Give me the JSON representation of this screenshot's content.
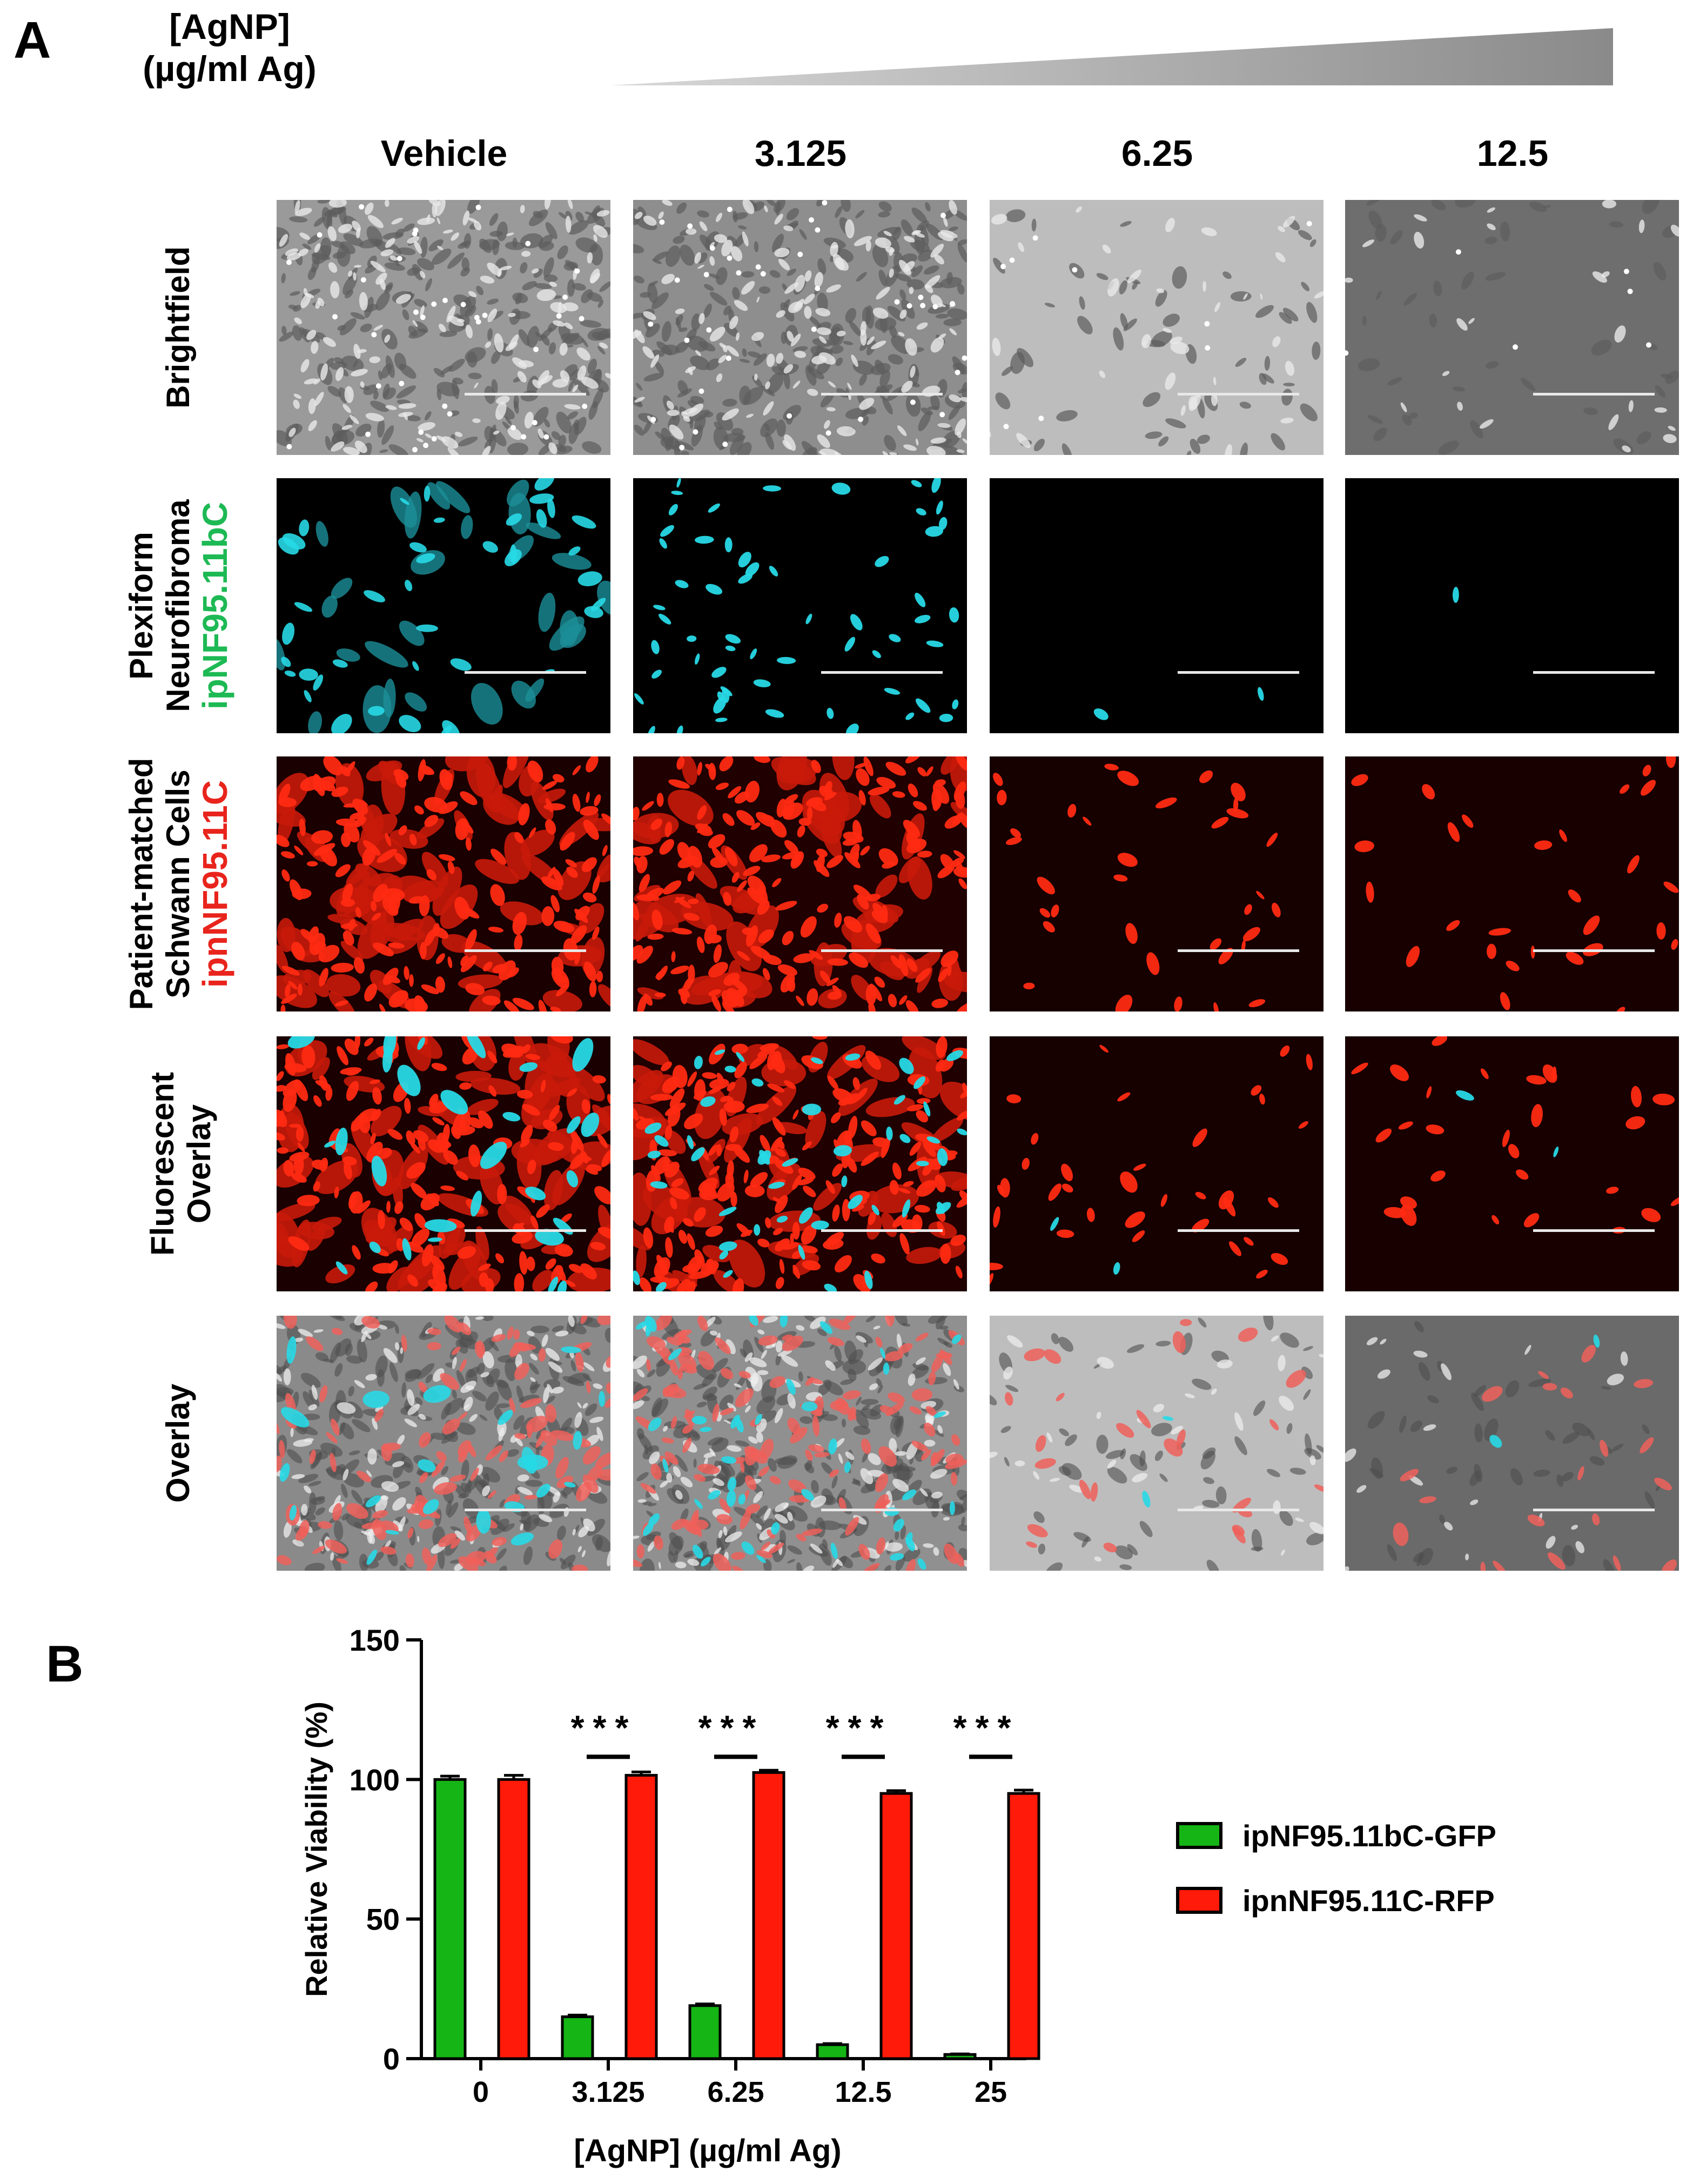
{
  "panel_a": {
    "letter": "A",
    "concentration_label_line1": "[AgNP]",
    "concentration_label_line2": "(µg/ml Ag)",
    "columns": [
      "Vehicle",
      "3.125",
      "6.25",
      "12.5"
    ],
    "rows": [
      {
        "line1": "Brightfield",
        "line2": "",
        "line3": "",
        "kind": "bf"
      },
      {
        "line1": "Plexiform",
        "line2": "Neurofibroma",
        "line3": "ipNF95.11bC",
        "kind": "gfp"
      },
      {
        "line1": "Patient-matched",
        "line2": "Schwann Cells",
        "line3": "ipnNF95.11C",
        "kind": "rfp"
      },
      {
        "line1": "Fluorescent",
        "line2": "Overlay",
        "line3": "",
        "kind": "fluo"
      },
      {
        "line1": "Overlay",
        "line2": "",
        "line3": "",
        "kind": "overlay"
      }
    ],
    "colors": {
      "gfp_label": "#1db954",
      "rfp_label": "#e8241c",
      "cyan": "#27d9e6",
      "red": "#ff2a12"
    }
  },
  "panel_b": {
    "letter": "B",
    "chart_data": {
      "type": "bar",
      "ylabel": "Relative Viability (%)",
      "xlabel": "[AgNP] (µg/ml Ag)",
      "ylim": [
        0,
        150
      ],
      "yticks": [
        "0",
        "50",
        "100",
        "150"
      ],
      "categories": [
        "0",
        "3.125",
        "6.25",
        "12.5",
        "25"
      ],
      "series": [
        {
          "name": "ipNF95.11bC-GFP",
          "color": "#15b515",
          "values": [
            100,
            15,
            19,
            5,
            1.5
          ],
          "err": [
            1.2,
            0.6,
            0.6,
            0.4,
            0.2
          ]
        },
        {
          "name": "ipnNF95.11C-RFP",
          "color": "#ff1a0a",
          "values": [
            100,
            101.5,
            102.5,
            95,
            95
          ],
          "err": [
            1.5,
            1.2,
            0.8,
            1.0,
            1.2
          ]
        }
      ],
      "significance": [
        "",
        "***",
        "***",
        "***",
        "***"
      ],
      "legend_position": "right"
    }
  }
}
